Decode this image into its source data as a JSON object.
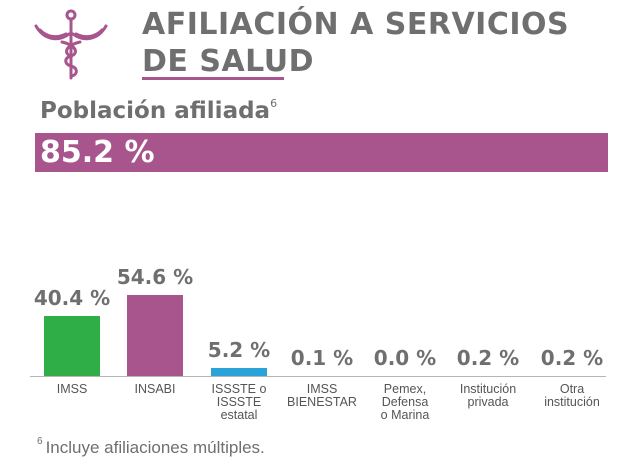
{
  "header": {
    "title_line1": "AFILIACIÓN A SERVICIOS",
    "title_line2": "DE SALUD",
    "icon": "caduceus-icon",
    "accent_color": "#a8558e"
  },
  "summary": {
    "label": "Población afiliada",
    "label_sup": "6",
    "value": "85.2 %"
  },
  "chart_data": {
    "type": "bar",
    "categories": [
      "IMSS",
      "INSABI",
      "ISSSTE o ISSSTE estatal",
      "IMSS BIENESTAR",
      "Pemex, Defensa o Marina",
      "Institución privada",
      "Otra institución"
    ],
    "category_lines": [
      [
        "IMSS"
      ],
      [
        "INSABI"
      ],
      [
        "ISSSTE o",
        "ISSSTE",
        "estatal"
      ],
      [
        "IMSS",
        "BIENESTAR"
      ],
      [
        "Pemex,",
        "Defensa",
        "o Marina"
      ],
      [
        "Institución",
        "privada"
      ],
      [
        "Otra",
        "institución"
      ]
    ],
    "values": [
      40.4,
      54.6,
      5.2,
      0.1,
      0.0,
      0.2,
      0.2
    ],
    "value_labels": [
      "40.4 %",
      "54.6 %",
      "5.2 %",
      "0.1 %",
      "0.0 %",
      "0.2 %",
      "0.2 %"
    ],
    "colors": [
      "#2fae48",
      "#a8558e",
      "#2aa3d8",
      "#a8a8a8",
      "#a8a8a8",
      "#a8a8a8",
      "#a8a8a8"
    ],
    "ylim": [
      0,
      60
    ]
  },
  "footnote": {
    "sup": "6",
    "text": "Incluye afiliaciones múltiples."
  }
}
